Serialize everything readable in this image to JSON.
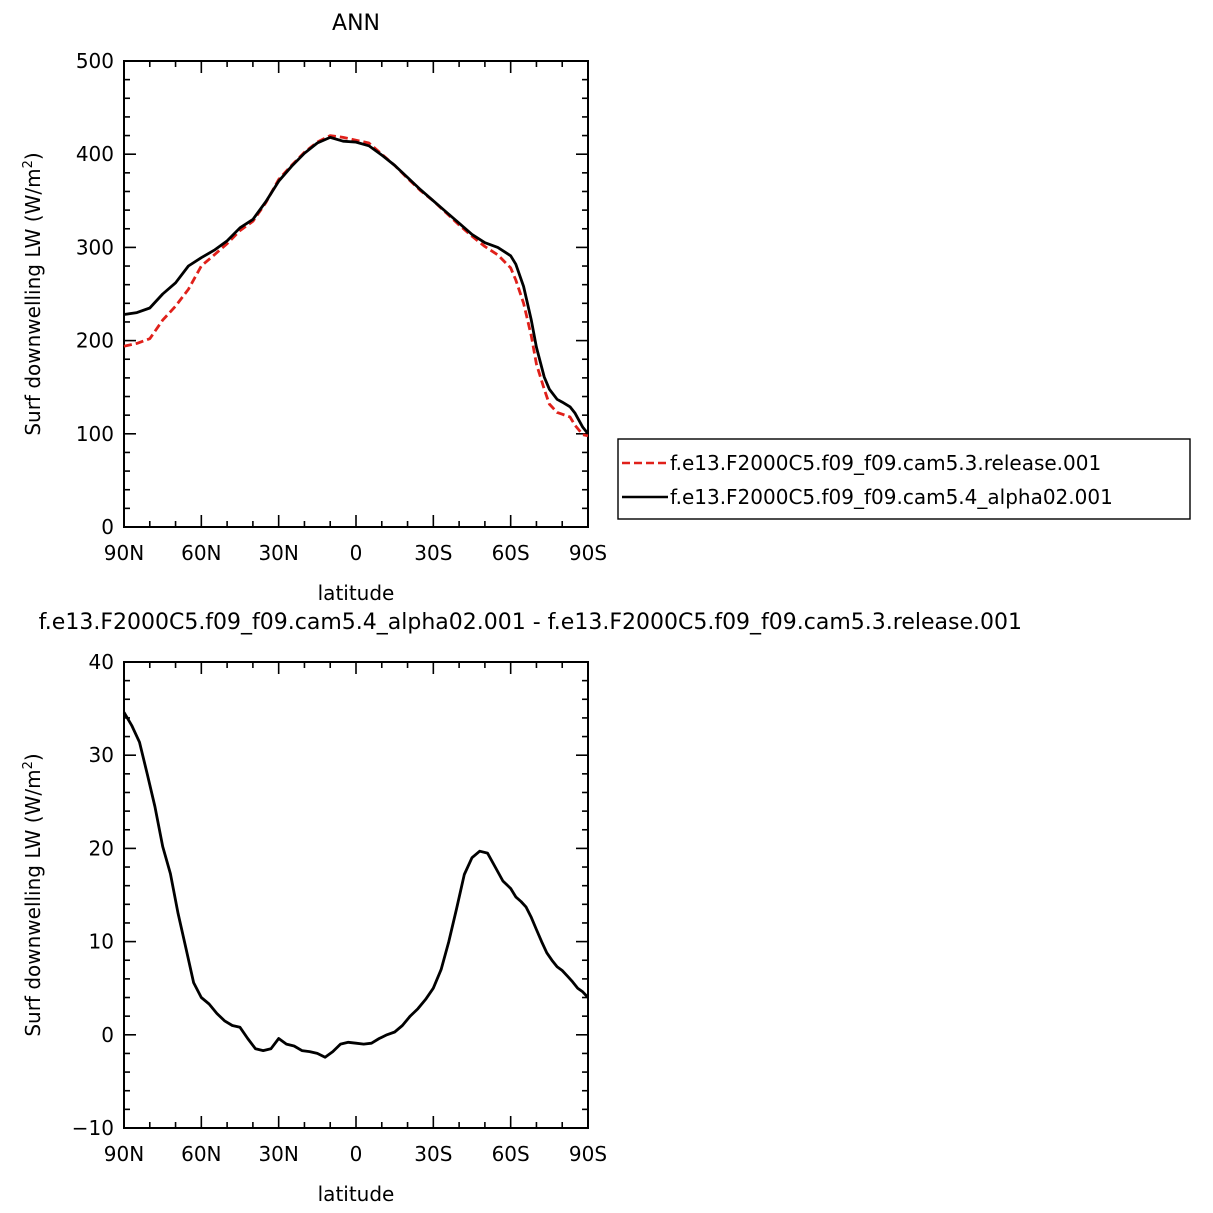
{
  "chart_data": [
    {
      "type": "line",
      "title": "ANN",
      "xlabel": "latitude",
      "ylabel": "Surf downwelling LW (W/m²)",
      "ylabel_text": "Surf downwelling LW (W/m",
      "ylabel_sup": "2",
      "ylabel_close": ")",
      "xlim": [
        90,
        -90
      ],
      "ylim": [
        0,
        500
      ],
      "xticks": [
        90,
        60,
        30,
        0,
        -30,
        -60,
        -90
      ],
      "xtick_labels": [
        "90N",
        "60N",
        "30N",
        "0",
        "30S",
        "60S",
        "90S"
      ],
      "yticks": [
        0,
        100,
        200,
        300,
        400,
        500
      ],
      "ytick_labels": [
        "0",
        "100",
        "200",
        "300",
        "400",
        "500"
      ],
      "legend": {
        "placement": "right"
      },
      "series": [
        {
          "name": "f.e13.F2000C5.f09_f09.cam5.3.release.001",
          "color": "#e0201a",
          "dash": "dashed",
          "x": [
            90,
            85,
            80,
            75,
            70,
            65,
            60,
            55,
            50,
            45,
            40,
            35,
            30,
            25,
            20,
            15,
            10,
            5,
            0,
            -5,
            -10,
            -15,
            -20,
            -25,
            -30,
            -35,
            -40,
            -45,
            -50,
            -55,
            -60,
            -62,
            -65,
            -68,
            -70,
            -73,
            -75,
            -78,
            -80,
            -83,
            -85,
            -88,
            -90
          ],
          "y": [
            194,
            197,
            202,
            222,
            237,
            255,
            280,
            292,
            304,
            318,
            328,
            348,
            373,
            388,
            402,
            413,
            420,
            418,
            415,
            412,
            400,
            388,
            374,
            361,
            350,
            337,
            324,
            312,
            301,
            292,
            278,
            265,
            240,
            205,
            175,
            148,
            132,
            123,
            121,
            118,
            109,
            99,
            98
          ]
        },
        {
          "name": "f.e13.F2000C5.f09_f09.cam5.4_alpha02.001",
          "color": "#000000",
          "dash": "solid",
          "x": [
            90,
            85,
            80,
            75,
            70,
            65,
            60,
            55,
            50,
            45,
            40,
            35,
            30,
            25,
            20,
            15,
            10,
            5,
            0,
            -5,
            -10,
            -15,
            -20,
            -25,
            -30,
            -35,
            -40,
            -45,
            -50,
            -55,
            -60,
            -62,
            -65,
            -68,
            -70,
            -73,
            -75,
            -78,
            -80,
            -83,
            -85,
            -88,
            -90
          ],
          "y": [
            228,
            230,
            235,
            250,
            262,
            280,
            289,
            297,
            307,
            321,
            330,
            349,
            371,
            387,
            401,
            412,
            418,
            414,
            413,
            409,
            399,
            388,
            375,
            362,
            350,
            338,
            326,
            314,
            305,
            300,
            291,
            282,
            258,
            222,
            193,
            161,
            148,
            137,
            134,
            129,
            122,
            107,
            100
          ]
        }
      ]
    },
    {
      "type": "line",
      "title": "f.e13.F2000C5.f09_f09.cam5.4_alpha02.001 - f.e13.F2000C5.f09_f09.cam5.3.release.001",
      "xlabel": "latitude",
      "ylabel": "Surf downwelling LW (W/m²)",
      "ylabel_text": "Surf downwelling LW (W/m",
      "ylabel_sup": "2",
      "ylabel_close": ")",
      "xlim": [
        90,
        -90
      ],
      "ylim": [
        -10,
        40
      ],
      "xticks": [
        90,
        60,
        30,
        0,
        -30,
        -60,
        -90
      ],
      "xtick_labels": [
        "90N",
        "60N",
        "30N",
        "0",
        "30S",
        "60S",
        "90S"
      ],
      "yticks": [
        -10,
        0,
        10,
        20,
        30,
        40
      ],
      "ytick_labels": [
        "−10",
        "0",
        "10",
        "20",
        "30",
        "40"
      ],
      "series": [
        {
          "color": "#000000",
          "dash": "solid",
          "x": [
            90,
            87,
            84,
            81,
            78,
            75,
            72,
            69,
            66,
            63,
            60,
            57,
            54,
            51,
            48,
            45,
            42,
            39,
            36,
            33,
            30,
            27,
            24,
            21,
            18,
            15,
            12,
            9,
            6,
            3,
            0,
            -3,
            -6,
            -9,
            -12,
            -15,
            -18,
            -21,
            -24,
            -27,
            -30,
            -33,
            -36,
            -39,
            -42,
            -45,
            -48,
            -51,
            -54,
            -57,
            -60,
            -62,
            -64,
            -66,
            -68,
            -70,
            -72,
            -74,
            -76,
            -78,
            -80,
            -82,
            -84,
            -86,
            -88,
            -90
          ],
          "y": [
            34.6,
            33.2,
            31.4,
            28.0,
            24.5,
            20.2,
            17.3,
            13.0,
            9.3,
            5.6,
            4.0,
            3.3,
            2.3,
            1.5,
            1.0,
            0.8,
            -0.4,
            -1.5,
            -1.7,
            -1.5,
            -0.4,
            -1.0,
            -1.2,
            -1.7,
            -1.8,
            -2.0,
            -2.4,
            -1.8,
            -1.0,
            -0.8,
            -0.9,
            -1.0,
            -0.9,
            -0.4,
            0.0,
            0.3,
            1.0,
            2.0,
            2.8,
            3.8,
            5.0,
            7.0,
            10.0,
            13.5,
            17.2,
            19.0,
            19.7,
            19.5,
            18.0,
            16.5,
            15.7,
            14.8,
            14.3,
            13.7,
            12.6,
            11.3,
            10.0,
            8.8,
            8.0,
            7.3,
            6.9,
            6.3,
            5.7,
            5.0,
            4.6,
            4.0
          ]
        }
      ]
    }
  ]
}
